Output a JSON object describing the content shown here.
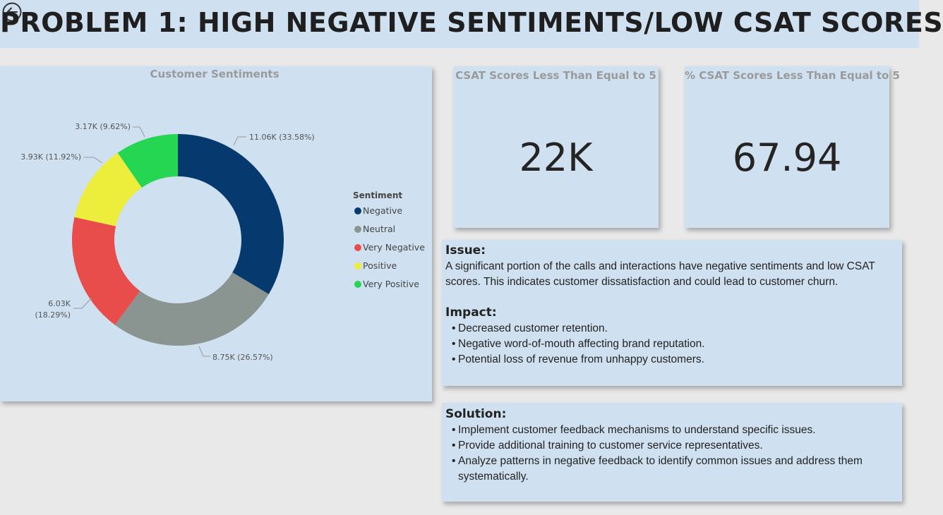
{
  "page": {
    "title": "PROBLEM 1: HIGH NEGATIVE SENTIMENTS/LOW CSAT SCORES"
  },
  "colors": {
    "background": "#e9e9e9",
    "card": "#cfe0f1",
    "negative": "#063a6e",
    "neutral": "#8a9490",
    "very_negative": "#e84d4c",
    "positive": "#eded3b",
    "very_positive": "#24d651"
  },
  "chart_data": {
    "type": "pie",
    "title": "Customer Sentiments",
    "legend": {
      "title": "Sentiment",
      "position": "right"
    },
    "slices": [
      {
        "name": "Negative",
        "value": 11.06,
        "label": "11.06K (33.58%)",
        "color": "#063a6e"
      },
      {
        "name": "Neutral",
        "value": 8.75,
        "label": "8.75K (26.57%)",
        "color": "#8a9490"
      },
      {
        "name": "Very Negative",
        "value": 6.03,
        "label_line1": "6.03K",
        "label_line2": "(18.29%)",
        "color": "#e84d4c"
      },
      {
        "name": "Positive",
        "value": 3.93,
        "label": "3.93K (11.92%)",
        "color": "#eded3b"
      },
      {
        "name": "Very Positive",
        "value": 3.17,
        "label": "3.17K (9.62%)",
        "color": "#24d651"
      }
    ]
  },
  "kpis": [
    {
      "title": "CSAT Scores Less Than Equal to 5",
      "value": "22K"
    },
    {
      "title": "% CSAT Scores Less Than Equal to 5",
      "value": "67.94"
    }
  ],
  "issue_box": {
    "issue_heading": "Issue:",
    "issue_text": "A significant portion of the calls and interactions have negative sentiments and low CSAT scores. This indicates customer dissatisfaction and could lead to customer churn.",
    "impact_heading": "Impact:",
    "impact_items": [
      "Decreased customer retention.",
      "Negative word-of-mouth affecting brand reputation.",
      "Potential loss of revenue from unhappy customers."
    ]
  },
  "solution_box": {
    "heading": "Solution:",
    "items": [
      "Implement customer feedback mechanisms to understand specific issues.",
      "Provide additional training to customer service representatives.",
      "Analyze patterns in negative feedback to identify common issues and address them systematically."
    ]
  }
}
